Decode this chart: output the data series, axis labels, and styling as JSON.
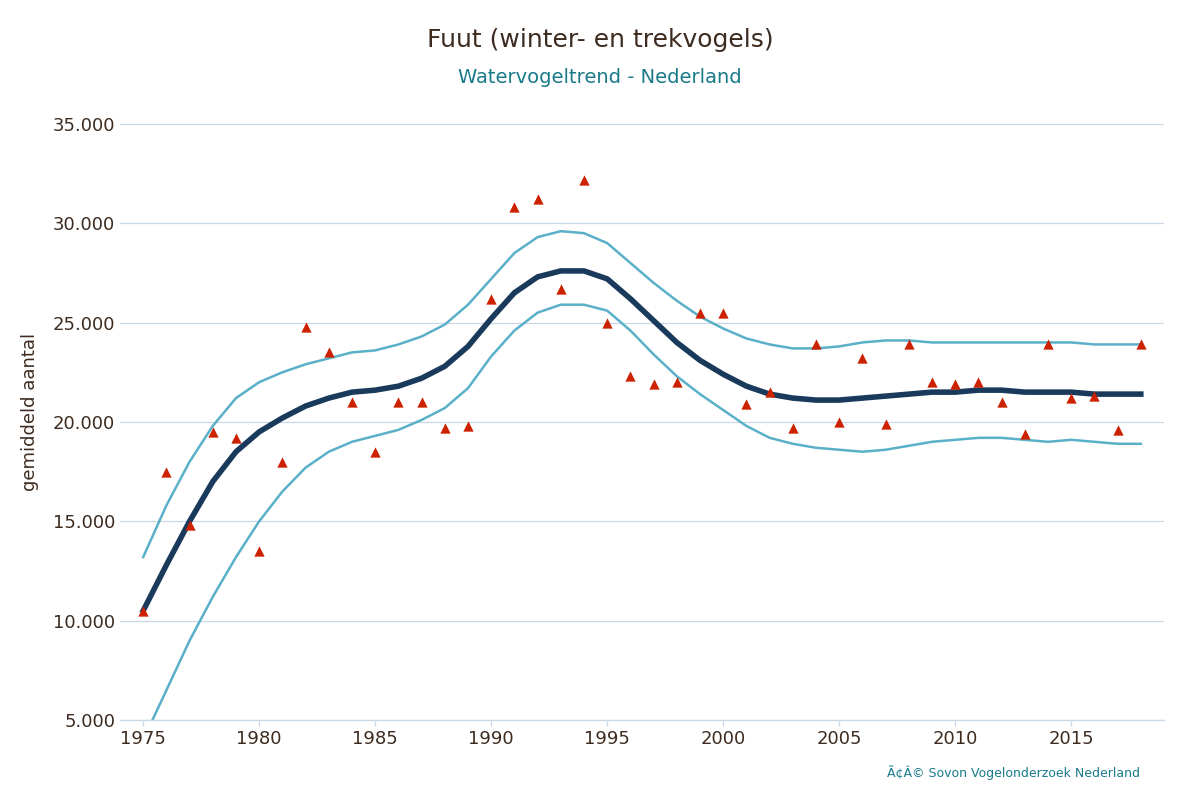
{
  "title": "Fuut (winter- en trekvogels)",
  "subtitle": "Watervogeltrend - Nederland",
  "title_color": "#3d2b1f",
  "subtitle_color": "#1a7a8a",
  "ylabel": "gemiddeld aantal",
  "ylabel_color": "#3d2b1f",
  "copyright": "Ã¢Â© Sovon Vogelonderzoek Nederland",
  "background_color": "#ffffff",
  "grid_color": "#c8d8e8",
  "tick_color": "#3d2b1f",
  "trend_color": "#1a3a5c",
  "ci_color": "#5ab0c8",
  "scatter_color": "#cc2200",
  "xlim": [
    1974,
    2019
  ],
  "ylim": [
    5000,
    36000
  ],
  "yticks": [
    5000,
    10000,
    15000,
    20000,
    25000,
    30000,
    35000
  ],
  "xticks": [
    1975,
    1980,
    1985,
    1990,
    1995,
    2000,
    2005,
    2010,
    2015
  ],
  "scatter_x": [
    1975,
    1976,
    1977,
    1978,
    1979,
    1980,
    1981,
    1982,
    1983,
    1984,
    1985,
    1986,
    1987,
    1988,
    1989,
    1990,
    1991,
    1992,
    1993,
    1994,
    1995,
    1996,
    1997,
    1998,
    1999,
    2000,
    2001,
    2002,
    2003,
    2004,
    2005,
    2006,
    2007,
    2008,
    2009,
    2010,
    2011,
    2012,
    2013,
    2014,
    2015,
    2016,
    2017,
    2018
  ],
  "scatter_y": [
    10500,
    17500,
    14800,
    19500,
    19200,
    13500,
    18000,
    24800,
    23500,
    21000,
    18500,
    21000,
    21000,
    19700,
    19800,
    26200,
    30800,
    31200,
    26700,
    32200,
    25000,
    22300,
    21900,
    22000,
    25500,
    25500,
    20900,
    21500,
    19700,
    23900,
    20000,
    23200,
    19900,
    23900,
    22000,
    21900,
    22000,
    21000,
    19400,
    23900,
    21200,
    21300,
    19600,
    23900
  ],
  "trend_x": [
    1975,
    1976,
    1977,
    1978,
    1979,
    1980,
    1981,
    1982,
    1983,
    1984,
    1985,
    1986,
    1987,
    1988,
    1989,
    1990,
    1991,
    1992,
    1993,
    1994,
    1995,
    1996,
    1997,
    1998,
    1999,
    2000,
    2001,
    2002,
    2003,
    2004,
    2005,
    2006,
    2007,
    2008,
    2009,
    2010,
    2011,
    2012,
    2013,
    2014,
    2015,
    2016,
    2017,
    2018
  ],
  "trend_y": [
    10500,
    12800,
    15000,
    17000,
    18500,
    19500,
    20200,
    20800,
    21200,
    21500,
    21600,
    21800,
    22200,
    22800,
    23800,
    25200,
    26500,
    27300,
    27600,
    27600,
    27200,
    26200,
    25100,
    24000,
    23100,
    22400,
    21800,
    21400,
    21200,
    21100,
    21100,
    21200,
    21300,
    21400,
    21500,
    21500,
    21600,
    21600,
    21500,
    21500,
    21500,
    21400,
    21400,
    21400
  ],
  "ci_upper": [
    13200,
    15800,
    18000,
    19800,
    21200,
    22000,
    22500,
    22900,
    23200,
    23500,
    23600,
    23900,
    24300,
    24900,
    25900,
    27200,
    28500,
    29300,
    29600,
    29500,
    29000,
    28000,
    27000,
    26100,
    25300,
    24700,
    24200,
    23900,
    23700,
    23700,
    23800,
    24000,
    24100,
    24100,
    24000,
    24000,
    24000,
    24000,
    24000,
    24000,
    24000,
    23900,
    23900,
    23900
  ],
  "ci_lower": [
    4000,
    6500,
    9000,
    11200,
    13200,
    15000,
    16500,
    17700,
    18500,
    19000,
    19300,
    19600,
    20100,
    20700,
    21700,
    23300,
    24600,
    25500,
    25900,
    25900,
    25600,
    24600,
    23400,
    22300,
    21400,
    20600,
    19800,
    19200,
    18900,
    18700,
    18600,
    18500,
    18600,
    18800,
    19000,
    19100,
    19200,
    19200,
    19100,
    19000,
    19100,
    19000,
    18900,
    18900
  ]
}
